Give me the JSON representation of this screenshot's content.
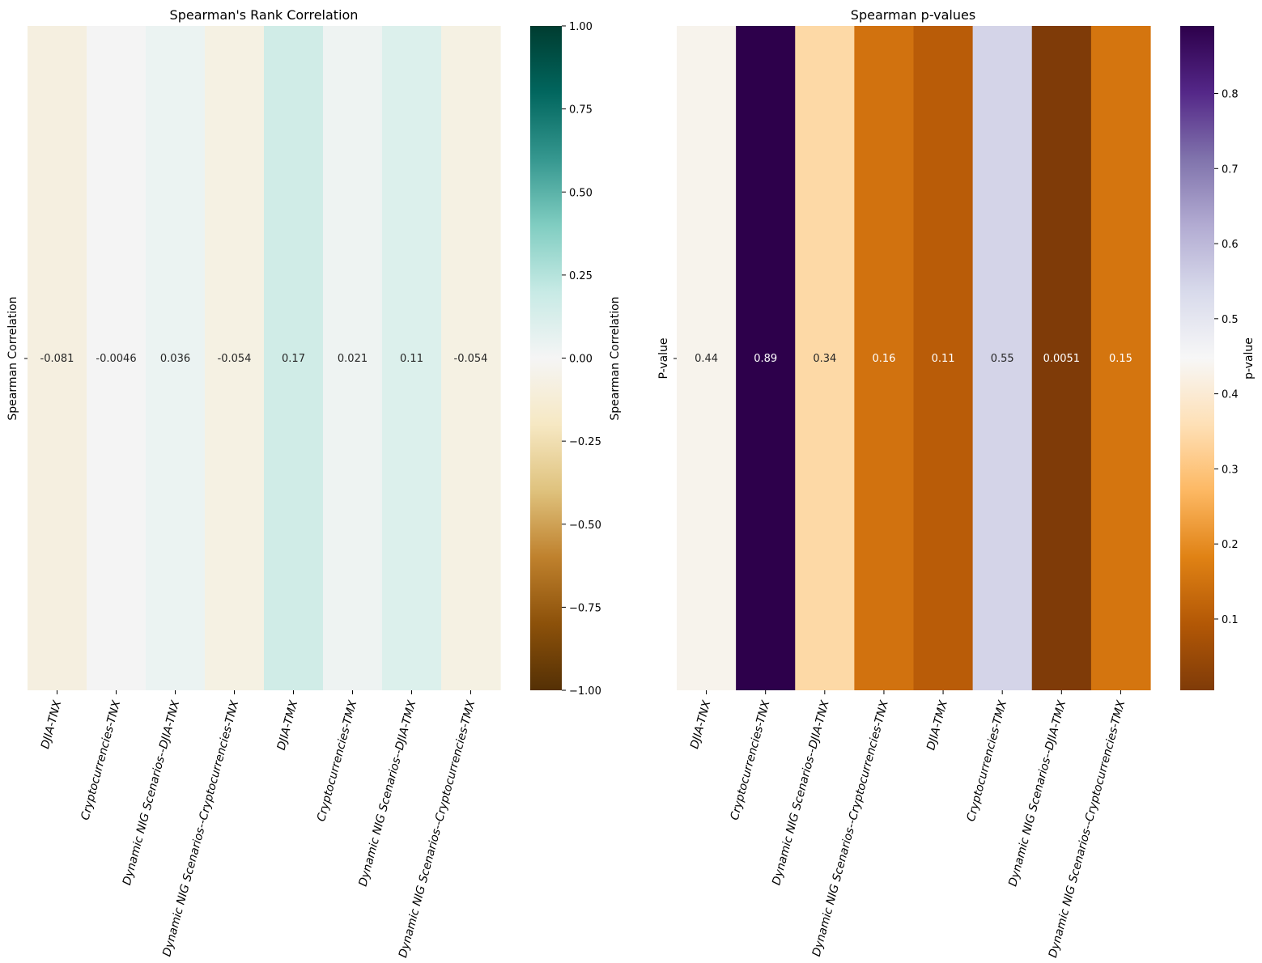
{
  "chart_data": [
    {
      "type": "heatmap",
      "title": "Spearman's Rank Correlation",
      "ylabel": "Spearman Correlation",
      "row_labels": [
        ""
      ],
      "categories": [
        "DJIA-TNX",
        "Cryptocurrencies-TNX",
        "Dynamic NIG Scenarios--DJIA-TNX",
        "Dynamic NIG Scenarios--Cryptocurrencies-TNX",
        "DJIA-TMX",
        "Cryptocurrencies-TMX",
        "Dynamic NIG Scenarios--DJIA-TMX",
        "Dynamic NIG Scenarios--Cryptocurrencies-TMX"
      ],
      "values": [
        -0.081,
        -0.0046,
        0.036,
        -0.054,
        0.17,
        0.021,
        0.11,
        -0.054
      ],
      "annotations": [
        "-0.081",
        "-0.0046",
        "0.036",
        "-0.054",
        "0.17",
        "0.021",
        "0.11",
        "-0.054"
      ],
      "colormap": "BrBG",
      "colorbar": {
        "label": "Spearman Correlation",
        "range": [
          -1,
          1
        ],
        "ticks": [
          1.0,
          0.75,
          0.5,
          0.25,
          0.0,
          -0.25,
          -0.5,
          -0.75,
          -1.0
        ],
        "tick_labels": [
          "1.00",
          "0.75",
          "0.50",
          "0.25",
          "0.00",
          "−0.25",
          "−0.50",
          "−0.75",
          "−1.00"
        ]
      },
      "cell_colors": [
        "#f5efe0",
        "#f4f4f4",
        "#ebf3f2",
        "#f5f1e3",
        "#d0ece7",
        "#eef3f2",
        "#dcf0ec",
        "#f5f1e3"
      ],
      "colorbar_stops": [
        "#003c30",
        "#01665e",
        "#35978f",
        "#80cdc1",
        "#c7eae5",
        "#f5f5f5",
        "#f6e8c3",
        "#dfc27d",
        "#bf812d",
        "#8c510a",
        "#543005"
      ]
    },
    {
      "type": "heatmap",
      "title": "Spearman p-values",
      "ylabel": "P-value",
      "row_labels": [
        ""
      ],
      "categories": [
        "DJIA-TNX",
        "Cryptocurrencies-TNX",
        "Dynamic NIG Scenarios--DJIA-TNX",
        "Dynamic NIG Scenarios--Cryptocurrencies-TNX",
        "DJIA-TMX",
        "Cryptocurrencies-TMX",
        "Dynamic NIG Scenarios--DJIA-TMX",
        "Dynamic NIG Scenarios--Cryptocurrencies-TMX"
      ],
      "values": [
        0.44,
        0.89,
        0.34,
        0.16,
        0.11,
        0.55,
        0.0051,
        0.15
      ],
      "annotations": [
        "0.44",
        "0.89",
        "0.34",
        "0.16",
        "0.11",
        "0.55",
        "0.0051",
        "0.15"
      ],
      "annotation_colors": [
        "#262626",
        "#ffffff",
        "#262626",
        "#ffffff",
        "#ffffff",
        "#262626",
        "#ffffff",
        "#ffffff"
      ],
      "colormap": "PuOr",
      "colorbar": {
        "label": "p-value",
        "range": [
          0.0051,
          0.89
        ],
        "ticks": [
          0.8,
          0.7,
          0.6,
          0.5,
          0.4,
          0.3,
          0.2,
          0.1
        ],
        "tick_labels": [
          "0.8",
          "0.7",
          "0.6",
          "0.5",
          "0.4",
          "0.3",
          "0.2",
          "0.1"
        ]
      },
      "cell_colors": [
        "#f7f3ec",
        "#2d004b",
        "#fdd9a6",
        "#d1720f",
        "#b95c08",
        "#d4d4e8",
        "#7f3b08",
        "#d4750f"
      ],
      "colorbar_stops": [
        "#2d004b",
        "#542788",
        "#8073ac",
        "#b2abd2",
        "#d8daeb",
        "#f7f7f7",
        "#fee0b6",
        "#fdb863",
        "#e08214",
        "#b35806",
        "#7f3b08"
      ]
    }
  ]
}
